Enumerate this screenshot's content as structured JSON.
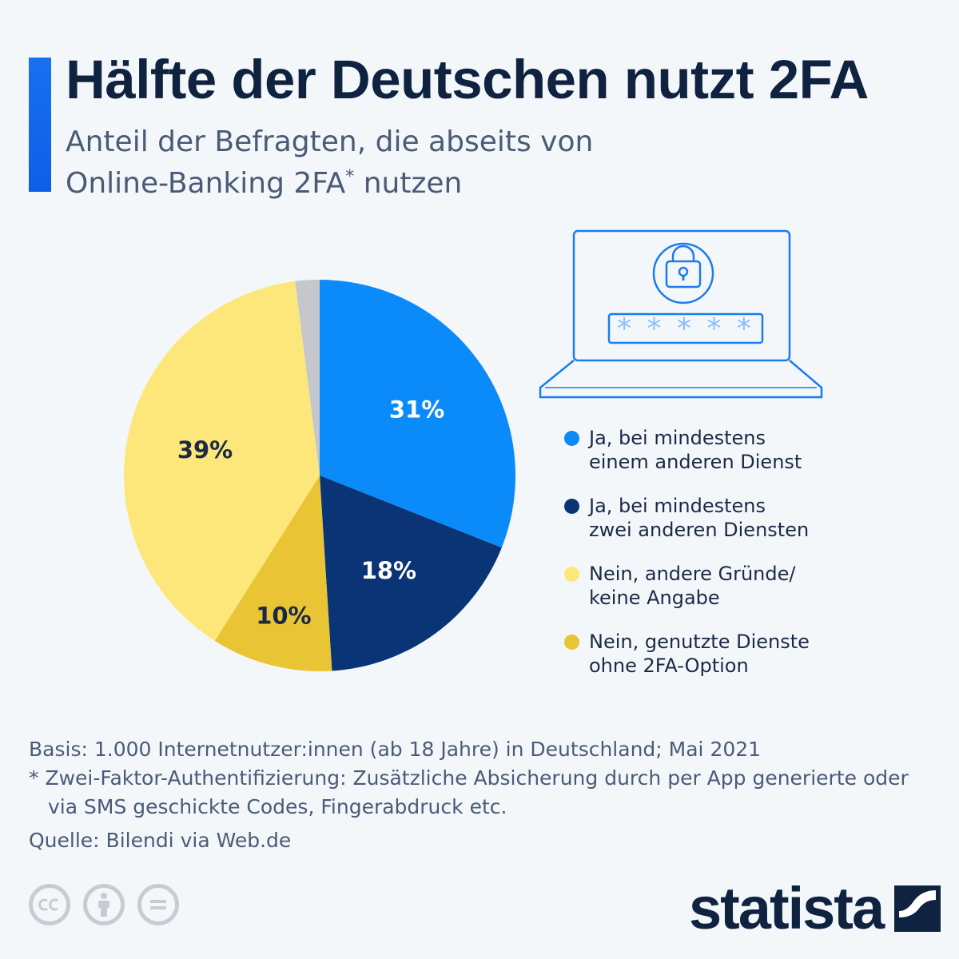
{
  "title": "Hälfte der Deutschen nutzt 2FA",
  "subtitle": {
    "line1": "Anteil der Befragten, die abseits von",
    "line2_prefix": "Online-Banking 2FA",
    "line2_mark": "*",
    "line2_suffix": " nutzen"
  },
  "chart_data": {
    "type": "pie",
    "title": "Hälfte der Deutschen nutzt 2FA",
    "unit": "%",
    "slices": [
      {
        "label": "Ja, bei mindestens einem anderen Dienst",
        "value": 31,
        "display": "31%",
        "color": "#0b8bfa",
        "label_color": "#ffffff"
      },
      {
        "label": "Ja, bei mindestens zwei anderen Diensten",
        "value": 18,
        "display": "18%",
        "color": "#0a3475",
        "label_color": "#ffffff"
      },
      {
        "label": "Nein, genutzte Dienste ohne 2FA-Option",
        "value": 10,
        "display": "10%",
        "color": "#e9c435",
        "label_color": "#1b2a44"
      },
      {
        "label": "Nein, andere Gründe/ keine Angabe",
        "value": 39,
        "display": "39%",
        "color": "#fee77a",
        "label_color": "#1b2a44"
      },
      {
        "label": "(ohne Beschriftung)",
        "value": 2,
        "display": "",
        "color": "#c4c7cb",
        "label_color": "#1b2a44"
      }
    ]
  },
  "illustration": {
    "password_mask": "* * * * *",
    "icon": "laptop-lock-icon"
  },
  "legend": [
    {
      "line1": "Ja, bei mindestens",
      "line2": "einem anderen Dienst",
      "color": "#0b8bfa"
    },
    {
      "line1": "Ja, bei mindestens",
      "line2": "zwei anderen Diensten",
      "color": "#0a3475"
    },
    {
      "line1": "Nein, andere Gründe/",
      "line2": "keine Angabe",
      "color": "#fee77a"
    },
    {
      "line1": "Nein, genutzte Dienste",
      "line2": "ohne 2FA-Option",
      "color": "#e9c435"
    }
  ],
  "footnotes": {
    "basis": "Basis: 1.000 Internetnutzer:innen (ab 18 Jahre) in Deutschland; Mai 2021",
    "note": "* Zwei-Faktor-Authentifizierung: Zusätzliche Absicherung durch per App generierte oder via SMS geschickte Codes, Fingerabdruck etc.",
    "source": "Quelle: Bilendi via Web.de"
  },
  "license_icons": [
    "cc-icon",
    "attribution-icon",
    "no-derivatives-icon"
  ],
  "brand": {
    "name": "statista"
  },
  "colors": {
    "accent": "#1a6ff0",
    "title": "#0f2340",
    "text": "#4a5b76",
    "illustration": "#1a7cf0"
  }
}
